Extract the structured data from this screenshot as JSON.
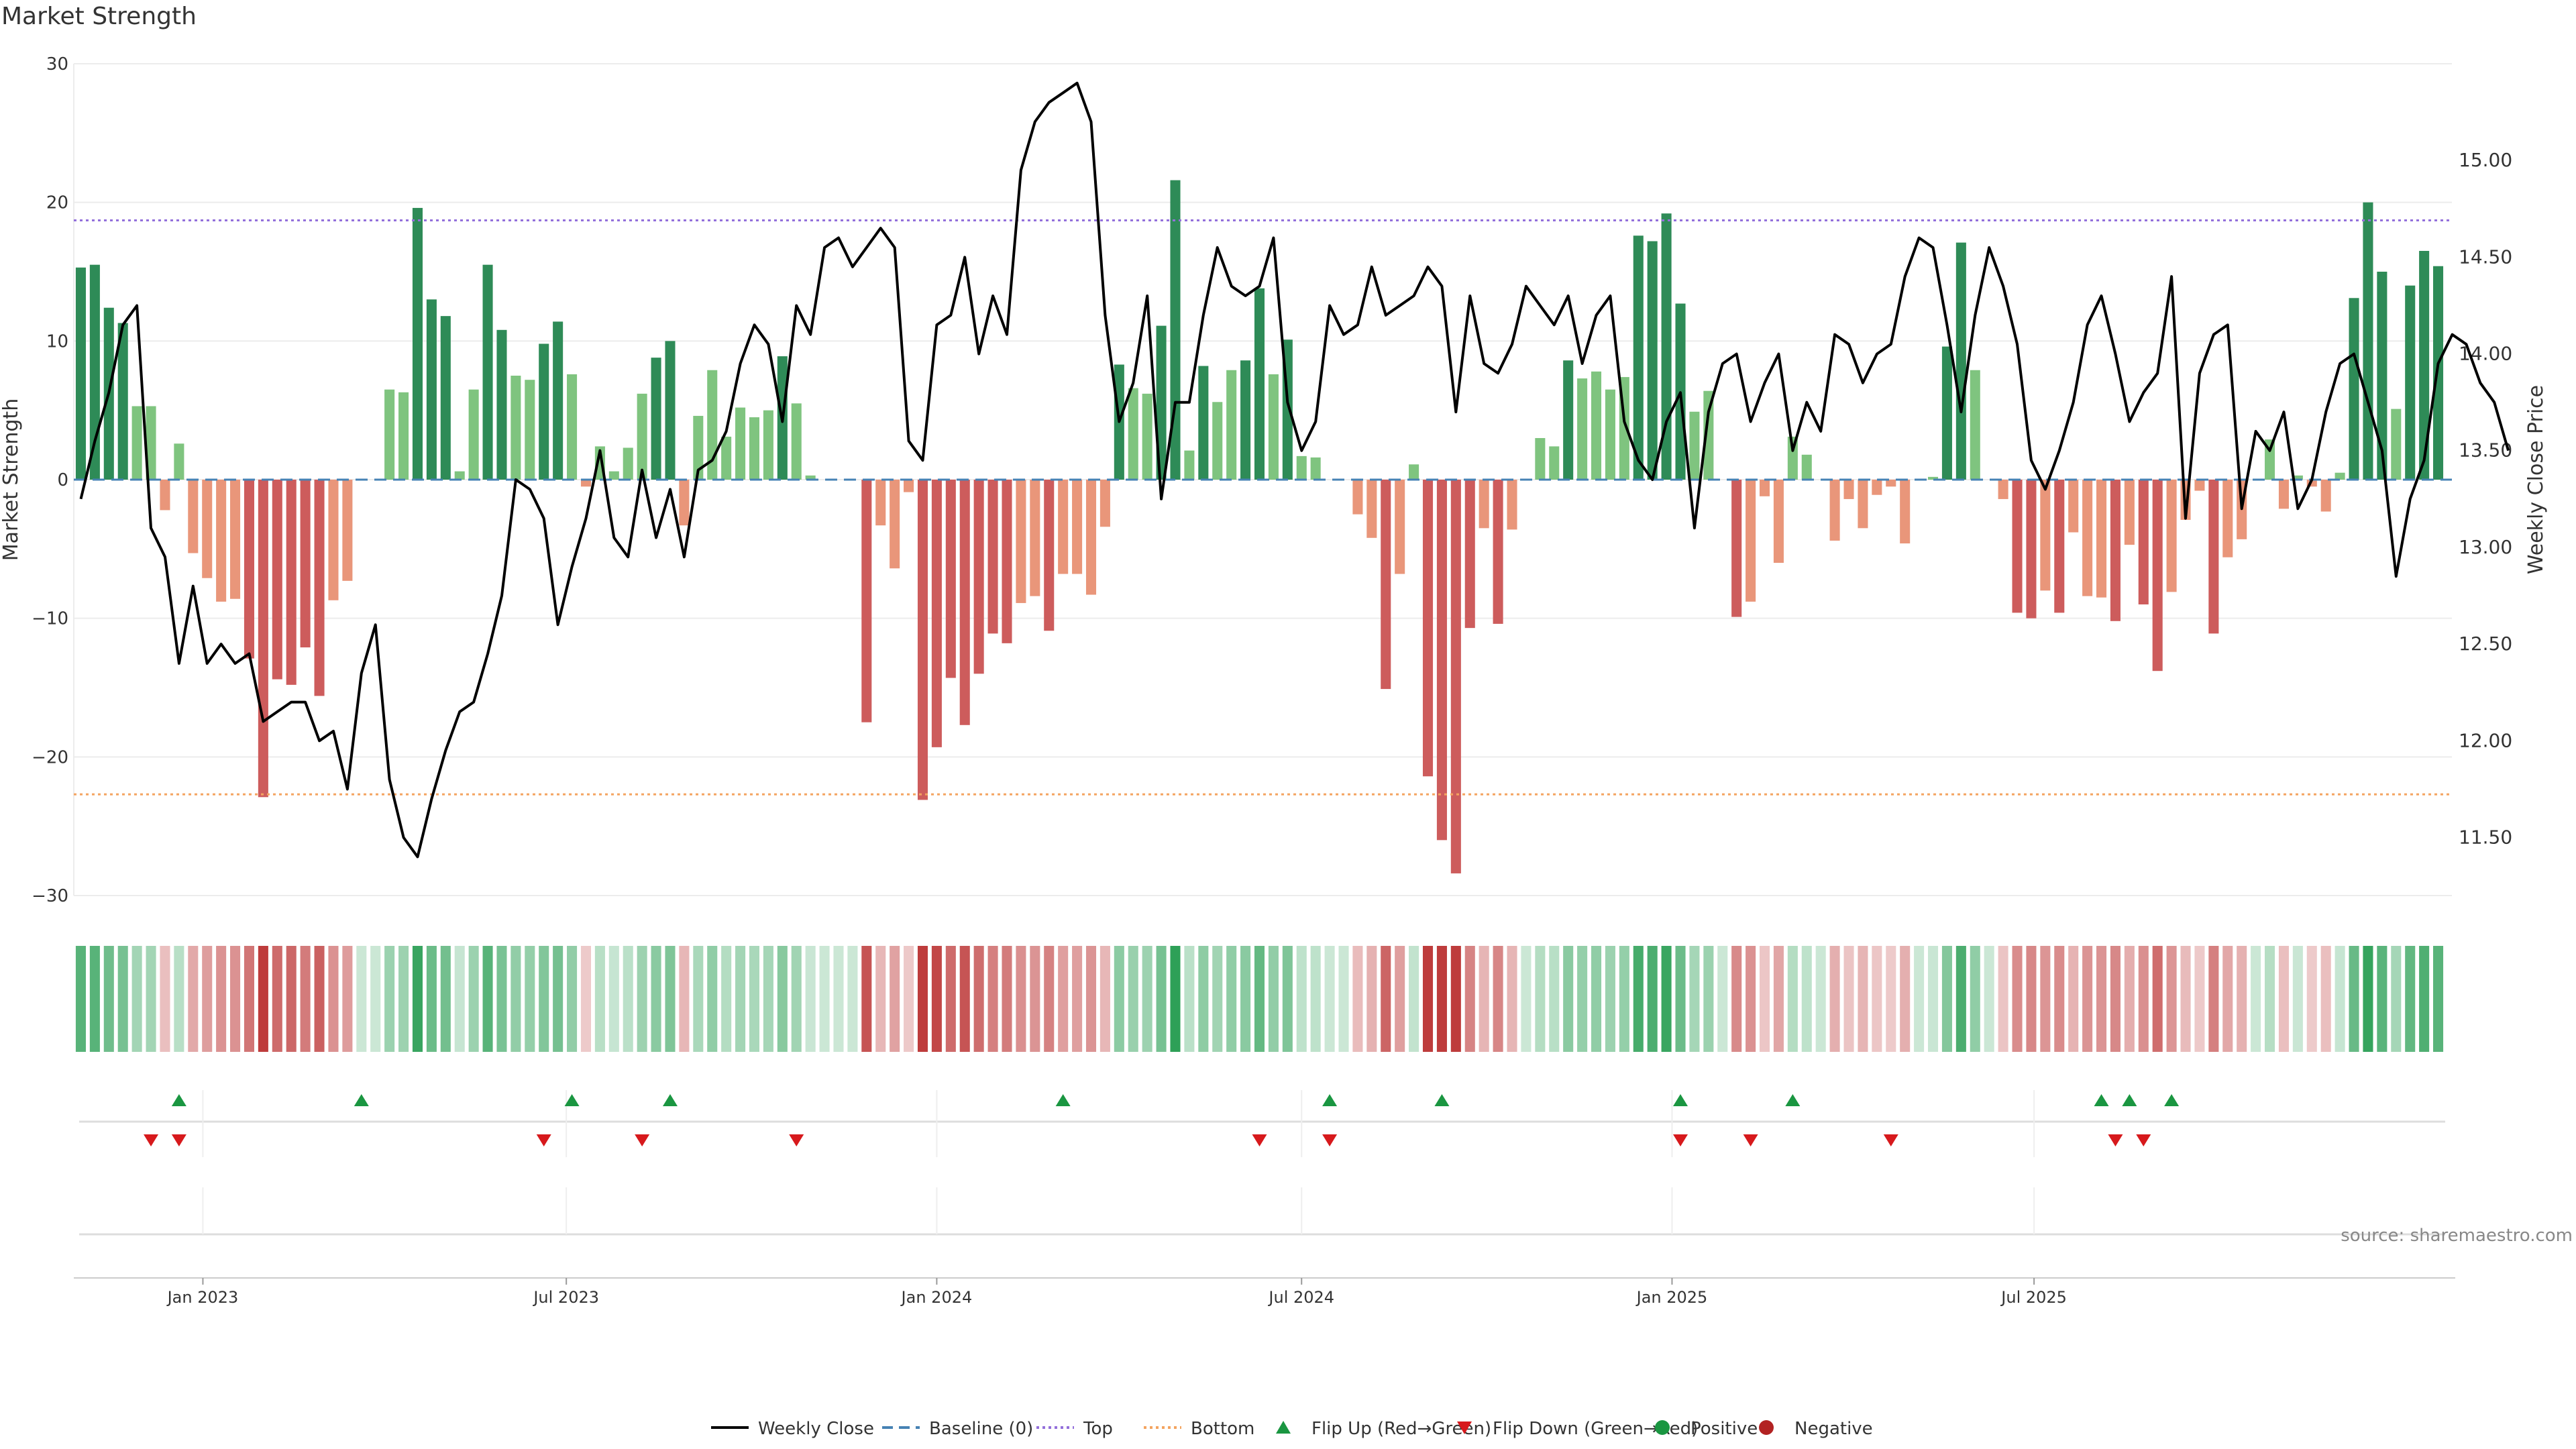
{
  "title": "Market Strength",
  "source": "source: sharemaestro.com",
  "colors": {
    "dark_green": "#2e8b57",
    "light_green": "#7fc47f",
    "dark_red": "#cd5c5c",
    "light_red": "#e9967a",
    "top_line": "#9370db",
    "bottom_line": "#f4a460",
    "baseline": "#4682b4",
    "flip_up": "#1a9641",
    "flip_down": "#d7191c",
    "price_line": "#000000"
  },
  "legend": [
    {
      "name": "Weekly Close",
      "icon": "solid-line"
    },
    {
      "name": "Baseline (0)",
      "icon": "dashed-line"
    },
    {
      "name": "Top",
      "icon": "dotted-line-purple"
    },
    {
      "name": "Bottom",
      "icon": "dotted-line-orange"
    },
    {
      "name": "Flip Up (Red→Green)",
      "icon": "triangle-up"
    },
    {
      "name": "Flip Down (Green→Red)",
      "icon": "triangle-down"
    },
    {
      "name": "Positive",
      "icon": "dot-green"
    },
    {
      "name": "Negative",
      "icon": "dot-red"
    }
  ],
  "chart_data": {
    "type": "bar",
    "title": "Market Strength",
    "ylabel": "Market Strength",
    "y2label": "Weekly Close Price",
    "ylim": [
      -30,
      30
    ],
    "y2lim": [
      11.2,
      15.5
    ],
    "yticks": [
      30,
      20,
      10,
      0,
      -10,
      -20,
      -30
    ],
    "y2ticks": [
      "15.00",
      "14.50",
      "14.00",
      "13.50",
      "13.00",
      "12.50",
      "12.00",
      "11.50"
    ],
    "xtick_labels": [
      "Jan 2023",
      "Jul 2023",
      "Jan 2024",
      "Jul 2024",
      "Jan 2025",
      "Jul 2025"
    ],
    "xtick_index": [
      8.7,
      34.6,
      61,
      87,
      113.4,
      139.2
    ],
    "top_level": 18.7,
    "bottom_level": -22.7,
    "baseline": 0,
    "grid": true,
    "legend_position": "bottom",
    "bar_values": [
      15.3,
      15.5,
      12.4,
      11.3,
      5.3,
      5.3,
      -2.2,
      2.6,
      -5.3,
      -7.1,
      -8.8,
      -8.6,
      -12.9,
      -22.9,
      -14.4,
      -14.8,
      -12.1,
      -15.6,
      -8.7,
      -7.3,
      0,
      0,
      6.5,
      6.3,
      19.6,
      13.0,
      11.8,
      0.6,
      6.5,
      15.5,
      10.8,
      7.5,
      7.2,
      9.8,
      11.4,
      7.6,
      -0.5,
      2.4,
      0.6,
      2.3,
      6.2,
      8.8,
      10.0,
      -3.3,
      4.6,
      7.9,
      3.1,
      5.2,
      4.5,
      5.0,
      8.9,
      5.5,
      0.3,
      0,
      0,
      0,
      -17.5,
      -3.3,
      -6.4,
      -0.9,
      -23.1,
      -19.3,
      -14.3,
      -17.7,
      -14.0,
      -11.1,
      -11.8,
      -8.9,
      -8.4,
      -10.9,
      -6.8,
      -6.8,
      -8.3,
      -3.4,
      8.3,
      6.6,
      6.2,
      11.1,
      21.6,
      2.1,
      8.2,
      5.6,
      7.9,
      8.6,
      13.8,
      7.6,
      10.1,
      1.7,
      1.6,
      0,
      0,
      -2.5,
      -4.2,
      -15.1,
      -6.8,
      1.1,
      -21.4,
      -26.0,
      -28.4,
      -10.7,
      -3.5,
      -10.4,
      -3.6,
      0,
      3.0,
      2.4,
      8.6,
      7.3,
      7.8,
      6.5,
      7.4,
      17.6,
      17.2,
      19.2,
      12.7,
      4.9,
      6.4,
      0,
      -9.9,
      -8.8,
      -1.2,
      -6.0,
      3.1,
      1.8,
      0,
      -4.4,
      -1.4,
      -3.5,
      -1.1,
      -0.5,
      -4.6,
      0,
      0.2,
      9.6,
      17.1,
      7.9,
      0,
      -1.4,
      -9.6,
      -10.0,
      -8.0,
      -9.6,
      -3.8,
      -8.4,
      -8.5,
      -10.2,
      -4.7,
      -9.0,
      -13.8,
      -8.1,
      -2.9,
      -0.8,
      -11.1,
      -5.6,
      -4.3,
      0,
      2.9,
      -2.1,
      0.3,
      -0.5,
      -2.3,
      0.5,
      13.1,
      20.0,
      15.0,
      5.1,
      14.0,
      16.5,
      15.4
    ],
    "weekly_close": [
      13.25,
      13.55,
      13.8,
      14.15,
      14.25,
      13.1,
      12.95,
      12.4,
      12.8,
      12.4,
      12.5,
      12.4,
      12.45,
      12.1,
      12.15,
      12.2,
      12.2,
      12.0,
      12.05,
      11.75,
      12.35,
      12.6,
      11.8,
      11.5,
      11.4,
      11.7,
      11.95,
      12.15,
      12.2,
      12.45,
      12.75,
      13.35,
      13.3,
      13.15,
      12.6,
      12.9,
      13.15,
      13.5,
      13.05,
      12.95,
      13.4,
      13.05,
      13.3,
      12.95,
      13.4,
      13.45,
      13.6,
      13.95,
      14.15,
      14.05,
      13.65,
      14.25,
      14.1,
      14.55,
      14.6,
      14.45,
      14.55,
      14.65,
      14.55,
      13.55,
      13.45,
      14.15,
      14.2,
      14.5,
      14.0,
      14.3,
      14.1,
      14.95,
      15.2,
      15.3,
      15.35,
      15.4,
      15.2,
      14.2,
      13.65,
      13.85,
      14.3,
      13.25,
      13.75,
      13.75,
      14.2,
      14.55,
      14.35,
      14.3,
      14.35,
      14.6,
      13.75,
      13.5,
      13.65,
      14.25,
      14.1,
      14.15,
      14.45,
      14.2,
      14.25,
      14.3,
      14.45,
      14.35,
      13.7,
      14.3,
      13.95,
      13.9,
      14.05,
      14.35,
      14.25,
      14.15,
      14.3,
      13.95,
      14.2,
      14.3,
      13.65,
      13.45,
      13.35,
      13.65,
      13.8,
      13.1,
      13.7,
      13.95,
      14.0,
      13.65,
      13.85,
      14.0,
      13.5,
      13.75,
      13.6,
      14.1,
      14.05,
      13.85,
      14.0,
      14.05,
      14.4,
      14.6,
      14.55,
      14.15,
      13.7,
      14.2,
      14.55,
      14.35,
      14.05,
      13.45,
      13.3,
      13.5,
      13.75,
      14.15,
      14.3,
      14.0,
      13.65,
      13.8,
      13.9,
      14.4,
      13.15,
      13.9,
      14.1,
      14.15,
      13.2,
      13.6,
      13.5,
      13.7,
      13.2,
      13.35,
      13.7,
      13.95,
      14.0,
      13.75,
      13.5,
      12.85,
      13.25,
      13.45,
      13.95,
      14.1,
      14.05,
      13.85,
      13.75,
      13.5
    ],
    "flip_up_index": [
      7,
      20,
      35,
      42,
      70,
      89,
      97,
      114,
      122,
      144,
      146,
      149
    ],
    "flip_down_index": [
      5,
      7,
      33,
      40,
      51,
      84,
      89,
      114,
      119,
      129,
      145,
      147
    ],
    "bottom_rows": 3
  }
}
